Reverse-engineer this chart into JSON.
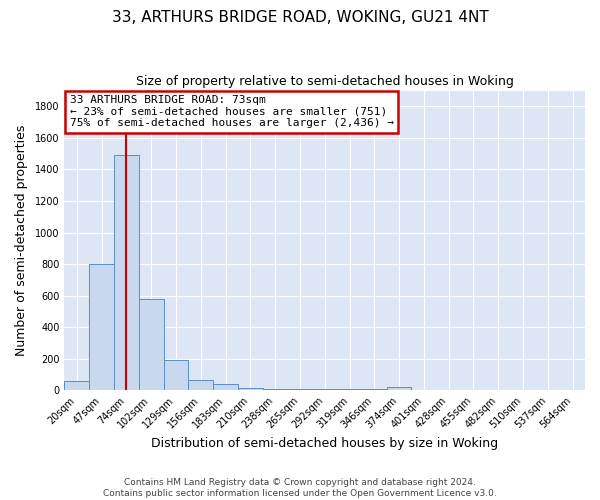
{
  "title": "33, ARTHURS BRIDGE ROAD, WOKING, GU21 4NT",
  "subtitle": "Size of property relative to semi-detached houses in Woking",
  "xlabel": "Distribution of semi-detached houses by size in Woking",
  "ylabel": "Number of semi-detached properties",
  "bin_labels": [
    "20sqm",
    "47sqm",
    "74sqm",
    "102sqm",
    "129sqm",
    "156sqm",
    "183sqm",
    "210sqm",
    "238sqm",
    "265sqm",
    "292sqm",
    "319sqm",
    "346sqm",
    "374sqm",
    "401sqm",
    "428sqm",
    "455sqm",
    "482sqm",
    "510sqm",
    "537sqm",
    "564sqm"
  ],
  "bar_values": [
    60,
    800,
    1490,
    580,
    190,
    65,
    40,
    15,
    10,
    5,
    5,
    5,
    5,
    20,
    2,
    2,
    2,
    2,
    2,
    2,
    2
  ],
  "bar_color": "#c8d8ee",
  "bar_edge_color": "#5b8ec4",
  "bar_width": 1.0,
  "ylim": [
    0,
    1900
  ],
  "yticks": [
    0,
    200,
    400,
    600,
    800,
    1000,
    1200,
    1400,
    1600,
    1800
  ],
  "property_bin_index": 2,
  "red_line_color": "#cc0000",
  "annotation_text_line1": "33 ARTHURS BRIDGE ROAD: 73sqm",
  "annotation_text_line2": "← 23% of semi-detached houses are smaller (751)",
  "annotation_text_line3": "75% of semi-detached houses are larger (2,436) →",
  "annotation_box_facecolor": "#ffffff",
  "annotation_box_edgecolor": "#cc0000",
  "figure_bg_color": "#ffffff",
  "plot_bg_color": "#dce6f5",
  "grid_color": "#ffffff",
  "footer_line1": "Contains HM Land Registry data © Crown copyright and database right 2024.",
  "footer_line2": "Contains public sector information licensed under the Open Government Licence v3.0.",
  "title_fontsize": 11,
  "subtitle_fontsize": 9,
  "axis_label_fontsize": 9,
  "tick_fontsize": 7,
  "annotation_fontsize": 8,
  "footer_fontsize": 6.5
}
